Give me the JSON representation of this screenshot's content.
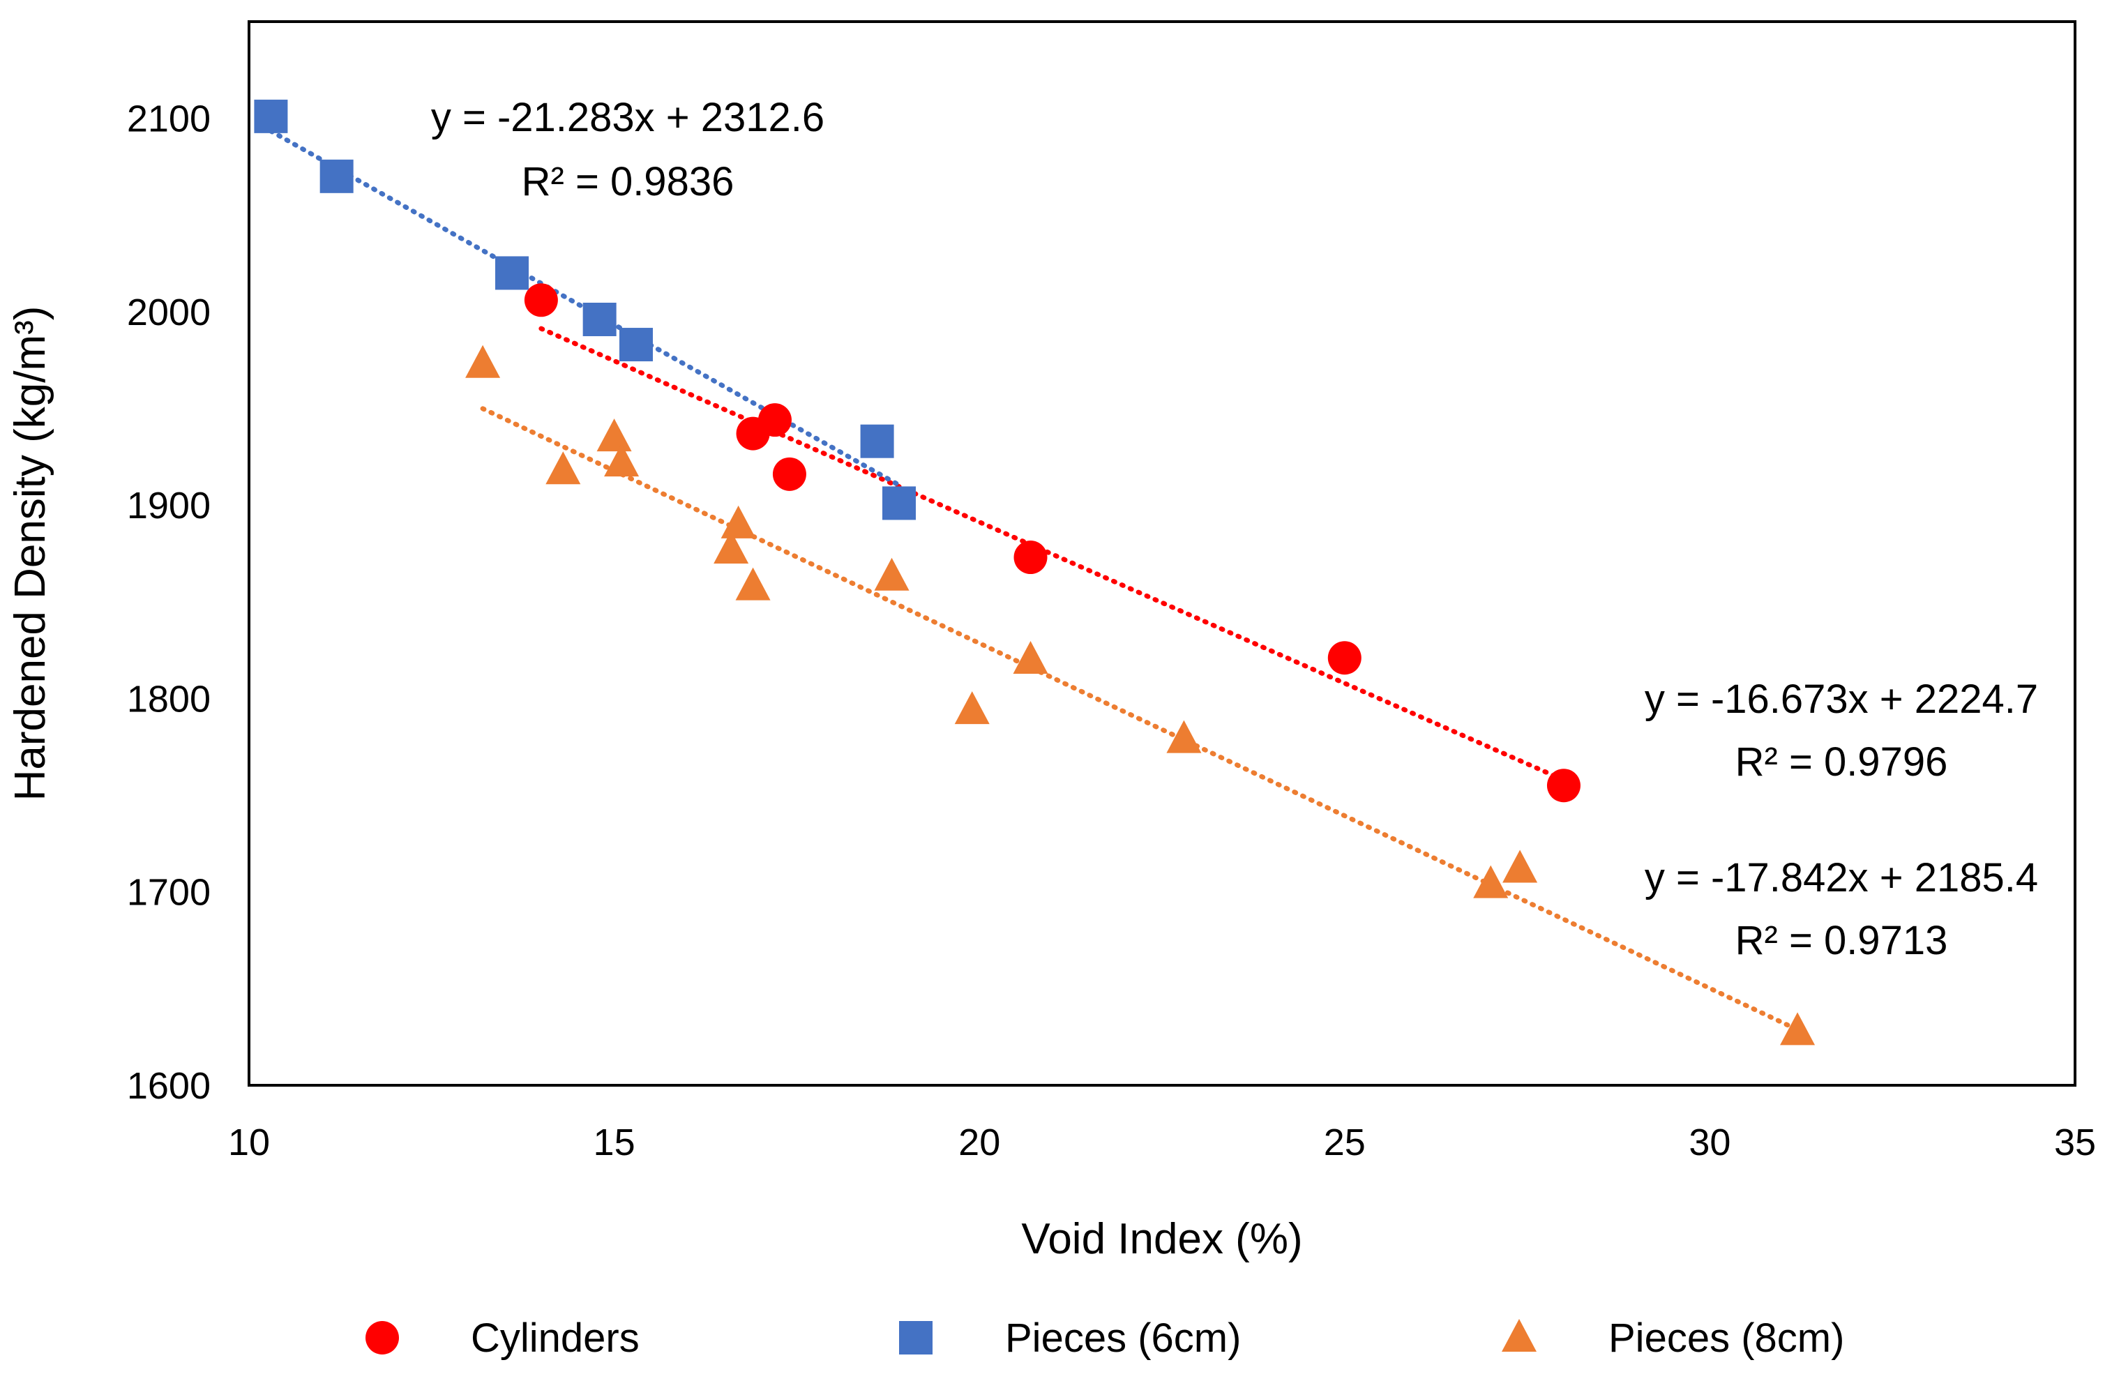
{
  "chart_data": {
    "type": "scatter",
    "title": "",
    "xlabel": "Void Index (%)",
    "ylabel": "Hardened Density (kg/m³)",
    "xlim": [
      10,
      35
    ],
    "ylim": [
      1600,
      2150
    ],
    "x_ticks": [
      10,
      15,
      20,
      25,
      30,
      35
    ],
    "y_ticks": [
      1600,
      1700,
      1800,
      1900,
      2000,
      2100
    ],
    "grid": false,
    "legend_position": "bottom",
    "series": [
      {
        "name": "Cylinders",
        "color": "#ff0000",
        "marker": "circle",
        "points": [
          {
            "x": 14.0,
            "y": 2006
          },
          {
            "x": 16.9,
            "y": 1937
          },
          {
            "x": 17.2,
            "y": 1944
          },
          {
            "x": 17.4,
            "y": 1916
          },
          {
            "x": 20.7,
            "y": 1873
          },
          {
            "x": 25.0,
            "y": 1821
          },
          {
            "x": 28.0,
            "y": 1755
          }
        ],
        "trendline": {
          "slope": -16.673,
          "intercept": 2224.7,
          "x_range": [
            14.0,
            28.0
          ],
          "equation": "y = -16.673x + 2224.7",
          "r2": "R² = 0.9796"
        }
      },
      {
        "name": "Pieces (6cm)",
        "color": "#4472c4",
        "marker": "square",
        "points": [
          {
            "x": 10.3,
            "y": 2101
          },
          {
            "x": 11.2,
            "y": 2070
          },
          {
            "x": 13.6,
            "y": 2020
          },
          {
            "x": 14.8,
            "y": 1996
          },
          {
            "x": 15.3,
            "y": 1983
          },
          {
            "x": 18.6,
            "y": 1933
          },
          {
            "x": 18.9,
            "y": 1901
          }
        ],
        "trendline": {
          "slope": -21.283,
          "intercept": 2312.6,
          "x_range": [
            10.3,
            18.9
          ],
          "equation": "y = -21.283x + 2312.6",
          "r2": "R² = 0.9836"
        }
      },
      {
        "name": "Pieces (8cm)",
        "color": "#ed7d31",
        "marker": "triangle",
        "points": [
          {
            "x": 13.2,
            "y": 1973
          },
          {
            "x": 14.3,
            "y": 1918
          },
          {
            "x": 15.0,
            "y": 1935
          },
          {
            "x": 15.1,
            "y": 1922
          },
          {
            "x": 16.6,
            "y": 1877
          },
          {
            "x": 16.7,
            "y": 1890
          },
          {
            "x": 16.9,
            "y": 1858
          },
          {
            "x": 18.8,
            "y": 1863
          },
          {
            "x": 19.9,
            "y": 1794
          },
          {
            "x": 20.7,
            "y": 1820
          },
          {
            "x": 22.8,
            "y": 1779
          },
          {
            "x": 27.0,
            "y": 1704
          },
          {
            "x": 27.4,
            "y": 1712
          },
          {
            "x": 31.2,
            "y": 1628
          }
        ],
        "trendline": {
          "slope": -17.842,
          "intercept": 2185.4,
          "x_range": [
            13.2,
            31.2
          ],
          "equation": "y = -17.842x + 2185.4",
          "r2": "R² = 0.9713"
        }
      }
    ]
  }
}
